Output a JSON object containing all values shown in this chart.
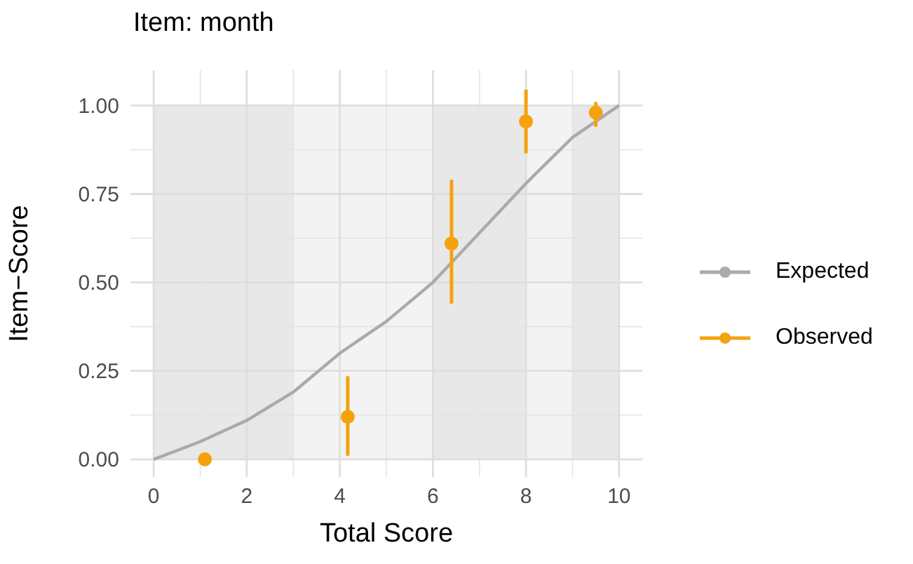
{
  "chart_data": {
    "type": "line",
    "title": "Item: month",
    "xlabel": "Total Score",
    "ylabel": "Item−Score",
    "xlim": [
      -0.5,
      10.5
    ],
    "xticks": [
      0,
      2,
      4,
      6,
      8,
      10
    ],
    "ylim": [
      -0.05,
      1.1
    ],
    "yticks": [
      {
        "value": 0,
        "label": "0.00"
      },
      {
        "value": 0.25,
        "label": "0.25"
      },
      {
        "value": 0.5,
        "label": "0.50"
      },
      {
        "value": 0.75,
        "label": "0.75"
      },
      {
        "value": 1,
        "label": "1.00"
      }
    ],
    "grid": true,
    "legend": "right",
    "bands": [
      {
        "axis": "x",
        "from": 0,
        "to": 3,
        "color": "#e8e8e8"
      },
      {
        "axis": "x",
        "from": 3,
        "to": 6,
        "color": "#f3f3f3"
      },
      {
        "axis": "x",
        "from": 6,
        "to": 8,
        "color": "#e8e8e8"
      },
      {
        "axis": "x",
        "from": 8,
        "to": 9,
        "color": "#f3f3f3"
      },
      {
        "axis": "x",
        "from": 9,
        "to": 10,
        "color": "#e8e8e8"
      }
    ],
    "series": [
      {
        "name": "Expected",
        "color": "#aaaaaa",
        "marker": "none",
        "x": [
          0,
          1,
          2,
          3,
          4,
          5,
          6,
          7,
          8,
          9,
          10
        ],
        "values": [
          0,
          0.05,
          0.11,
          0.19,
          0.3,
          0.39,
          0.5,
          0.64,
          0.78,
          0.91,
          1
        ]
      },
      {
        "name": "Observed",
        "type": "scatter",
        "color": "#f5a20f",
        "marker": "circle",
        "x": [
          1.1,
          4.17,
          6.4,
          8,
          9.5
        ],
        "values": [
          0,
          0.12,
          0.61,
          0.955,
          0.98
        ],
        "errors": [
          null,
          [
            0.01,
            0.235
          ],
          [
            0.44,
            0.79
          ],
          [
            0.865,
            1.045
          ],
          [
            0.94,
            1.01
          ]
        ]
      }
    ]
  }
}
